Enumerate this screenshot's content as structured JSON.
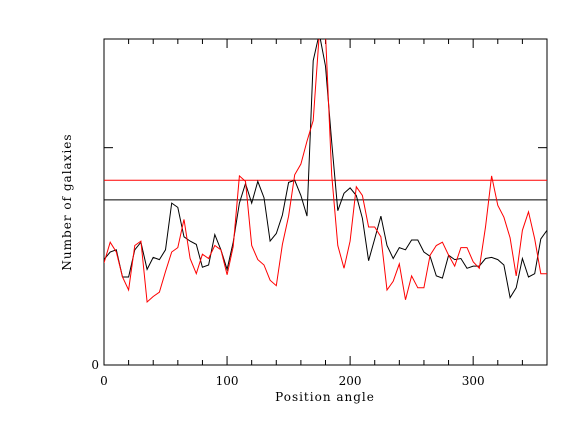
{
  "chart_data": {
    "type": "line",
    "xlabel": "Position angle",
    "ylabel": "Number of galaxies",
    "xlim": [
      0,
      360
    ],
    "ylim": [
      0,
      300
    ],
    "x_ticks": [
      0,
      100,
      200,
      300
    ],
    "x_tick_labels": [
      "0",
      "100",
      "200",
      "300"
    ],
    "y_tick_labels": [
      "0"
    ],
    "grid": false,
    "series": [
      {
        "color": "#000000",
        "x": [
          0,
          5,
          10,
          15,
          20,
          25,
          30,
          35,
          40,
          45,
          50,
          55,
          60,
          65,
          70,
          75,
          80,
          85,
          90,
          95,
          100,
          105,
          110,
          115,
          120,
          125,
          130,
          135,
          140,
          145,
          150,
          155,
          160,
          165,
          170,
          175,
          180,
          185,
          190,
          195,
          200,
          205,
          210,
          215,
          220,
          225,
          230,
          235,
          240,
          245,
          250,
          255,
          260,
          265,
          270,
          275,
          280,
          285,
          290,
          295,
          300,
          305,
          310,
          315,
          320,
          325,
          330,
          335,
          340,
          345,
          350,
          355,
          360
        ],
        "values": [
          97,
          104,
          106,
          81,
          81,
          106,
          113,
          88,
          99,
          97,
          106,
          149,
          145,
          118,
          114,
          111,
          90,
          92,
          120,
          106,
          88,
          113,
          149,
          167,
          149,
          169,
          154,
          114,
          121,
          138,
          168,
          170,
          156,
          137,
          280,
          305,
          275,
          205,
          142,
          158,
          163,
          156,
          135,
          96,
          116,
          137,
          110,
          98,
          108,
          106,
          115,
          115,
          104,
          100,
          82,
          80,
          101,
          97,
          98,
          89,
          91,
          91,
          98,
          99,
          97,
          92,
          62,
          71,
          98,
          81,
          84,
          116,
          124
        ]
      },
      {
        "color": "#ff0000",
        "x": [
          0,
          5,
          10,
          15,
          20,
          25,
          30,
          35,
          40,
          45,
          50,
          55,
          60,
          65,
          70,
          75,
          80,
          85,
          90,
          95,
          100,
          105,
          110,
          115,
          120,
          125,
          130,
          135,
          140,
          145,
          150,
          155,
          160,
          165,
          170,
          175,
          180,
          185,
          190,
          195,
          200,
          205,
          210,
          215,
          220,
          225,
          230,
          235,
          240,
          245,
          250,
          255,
          260,
          265,
          270,
          275,
          280,
          285,
          290,
          295,
          300,
          305,
          310,
          315,
          320,
          325,
          330,
          335,
          340,
          345,
          350,
          355,
          360
        ],
        "values": [
          94,
          113,
          104,
          81,
          69,
          110,
          114,
          58,
          63,
          67,
          86,
          104,
          108,
          134,
          98,
          84,
          102,
          98,
          110,
          106,
          83,
          109,
          174,
          169,
          110,
          97,
          92,
          78,
          73,
          111,
          137,
          175,
          185,
          206,
          225,
          305,
          305,
          175,
          110,
          89,
          114,
          164,
          156,
          127,
          127,
          118,
          69,
          77,
          93,
          60,
          82,
          71,
          71,
          101,
          110,
          113,
          101,
          91,
          108,
          108,
          95,
          89,
          127,
          174,
          147,
          136,
          117,
          82,
          124,
          141,
          116,
          84,
          84
        ]
      }
    ],
    "reference_lines": [
      {
        "color": "#ff0000",
        "y": 170
      },
      {
        "color": "#000000",
        "y": 152
      }
    ]
  }
}
